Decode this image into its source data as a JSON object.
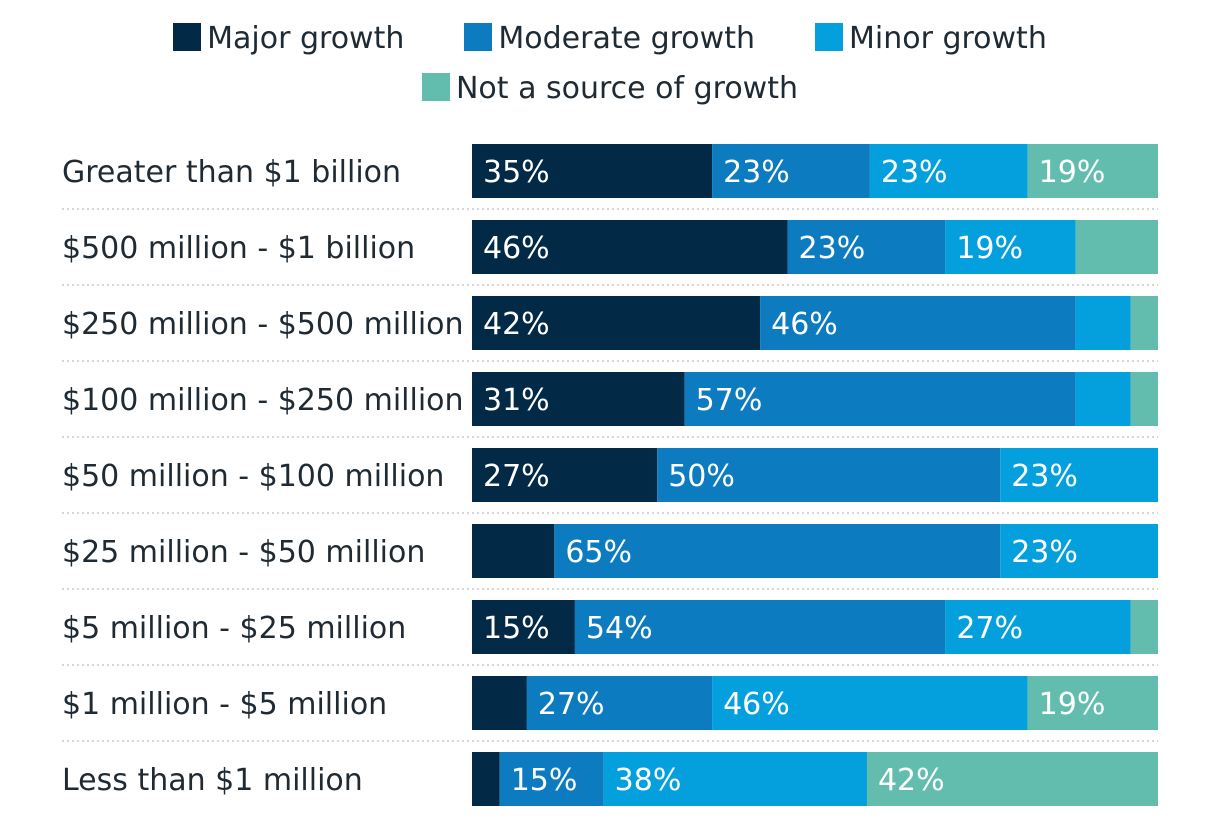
{
  "legend": {
    "items": [
      {
        "label": "Major growth",
        "color": "#022a46"
      },
      {
        "label": "Moderate growth",
        "color": "#0d7bbf"
      },
      {
        "label": "Minor growth",
        "color": "#04a0de"
      },
      {
        "label": "Not a source of growth",
        "color": "#63bdae"
      }
    ]
  },
  "chart_data": {
    "type": "bar",
    "orientation": "horizontal",
    "stacked": true,
    "categories": [
      "Greater than $1 billion",
      "$500 million - $1 billion",
      "$250 million - $500 million",
      "$100 million - $250 million",
      "$50 million - $100 million",
      "$25 million - $50 million",
      "$5 million - $25 million",
      "$1 million - $5 million",
      "Less than $1 million"
    ],
    "series": [
      {
        "name": "Major growth",
        "color": "#022a46",
        "values": [
          35,
          46,
          42,
          31,
          27,
          12,
          15,
          8,
          4
        ],
        "labels": [
          "35%",
          "46%",
          "42%",
          "31%",
          "27%",
          "",
          "15%",
          "",
          ""
        ]
      },
      {
        "name": "Moderate growth",
        "color": "#0d7bbf",
        "values": [
          23,
          23,
          46,
          57,
          50,
          65,
          54,
          27,
          15
        ],
        "labels": [
          "23%",
          "23%",
          "46%",
          "57%",
          "50%",
          "65%",
          "54%",
          "27%",
          "15%"
        ]
      },
      {
        "name": "Minor growth",
        "color": "#04a0de",
        "values": [
          23,
          19,
          8,
          8,
          23,
          23,
          27,
          46,
          38
        ],
        "labels": [
          "23%",
          "19%",
          "",
          "",
          "23%",
          "23%",
          "27%",
          "46%",
          "38%"
        ]
      },
      {
        "name": "Not a source of growth",
        "color": "#63bdae",
        "values": [
          19,
          12,
          4,
          4,
          0,
          0,
          4,
          19,
          42
        ],
        "labels": [
          "19%",
          "",
          "",
          "",
          "",
          "",
          "",
          "19%",
          "42%"
        ]
      }
    ],
    "xlim": [
      0,
      100
    ],
    "grid": false,
    "legend_position": "top"
  }
}
